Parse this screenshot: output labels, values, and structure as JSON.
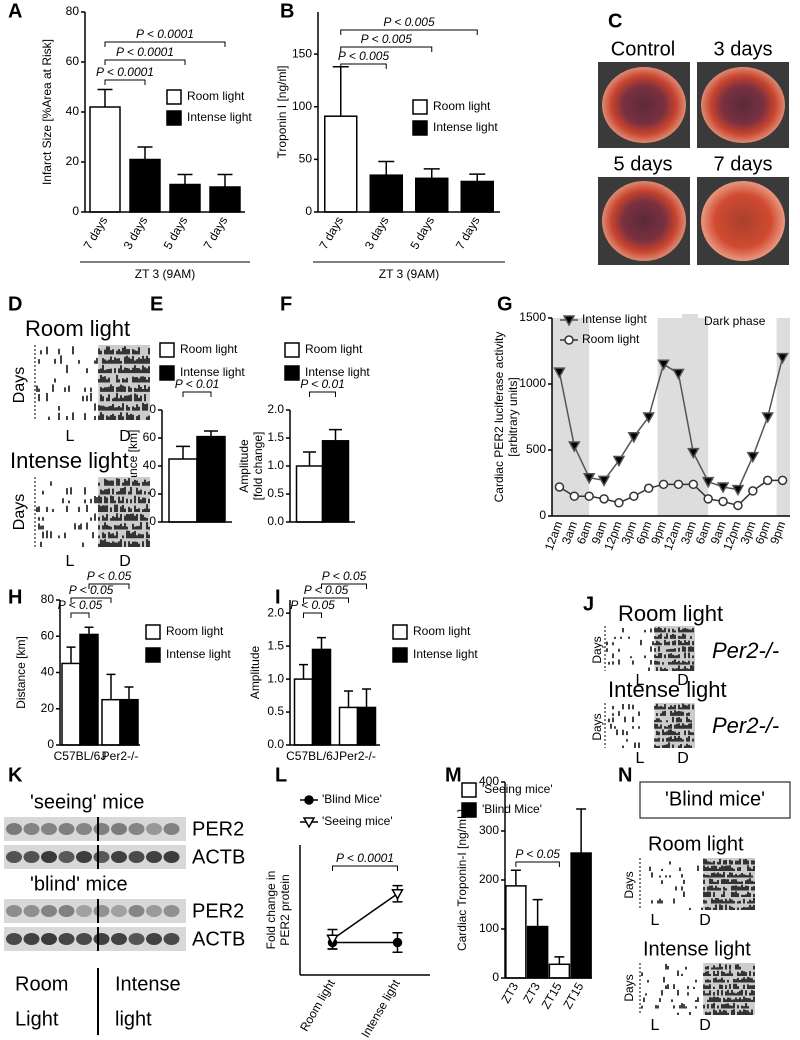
{
  "chart_data": [
    {
      "label": "A",
      "type": "bar",
      "ylabel": [
        "Infarct Size [%Area at Risk]"
      ],
      "categories": [
        "7 days",
        "3 days",
        "5 days",
        "7 days"
      ],
      "xlabel": "ZT 3 (9AM)",
      "series": [
        {
          "name": "Room light",
          "color": "#ffffff",
          "values": [
            42,
            null,
            null,
            null
          ],
          "errors": [
            7,
            null,
            null,
            null
          ]
        },
        {
          "name": "Intense light",
          "color": "#000000",
          "values": [
            null,
            21,
            11,
            10
          ],
          "errors": [
            null,
            5,
            4,
            5
          ]
        }
      ],
      "ylim": [
        0,
        80
      ],
      "yticks": [
        0,
        20,
        40,
        60,
        80
      ],
      "annotations": [
        "P < 0.0001",
        "P < 0.0001",
        "P < 0.0001"
      ]
    },
    {
      "label": "B",
      "type": "bar",
      "ylabel": [
        "Troponin I [ng/ml]"
      ],
      "categories": [
        "7 days",
        "3 days",
        "5 days",
        "7 days"
      ],
      "xlabel": "ZT 3 (9AM)",
      "series": [
        {
          "name": "Room light",
          "color": "#ffffff",
          "values": [
            91,
            null,
            null,
            null
          ],
          "errors": [
            47,
            null,
            null,
            null
          ]
        },
        {
          "name": "Intense light",
          "color": "#000000",
          "values": [
            null,
            35,
            32,
            29
          ],
          "errors": [
            null,
            13,
            9,
            7
          ]
        }
      ],
      "ylim": [
        0,
        190
      ],
      "yticks": [
        0,
        50,
        100,
        150
      ],
      "annotations": [
        "P < 0.005",
        "P < 0.005",
        "P < 0.005"
      ]
    },
    {
      "label": "E",
      "type": "bar",
      "ylabel": [
        "Distance [km]"
      ],
      "categories": [
        null
      ],
      "series": [
        {
          "name": "Room light",
          "color": "#ffffff",
          "values": [
            45
          ],
          "errors": [
            9
          ]
        },
        {
          "name": "Intense light",
          "color": "#000000",
          "values": [
            61
          ],
          "errors": [
            4
          ]
        }
      ],
      "ylim": [
        0,
        80
      ],
      "yticks": [
        0,
        20,
        40,
        60,
        80
      ],
      "annotations": [
        "P < 0.01"
      ]
    },
    {
      "label": "F",
      "type": "bar",
      "ylabel": [
        "Amplitude",
        "[fold change]"
      ],
      "categories": [
        null
      ],
      "series": [
        {
          "name": "Room light",
          "color": "#ffffff",
          "values": [
            1.0
          ],
          "errors": [
            0.25
          ]
        },
        {
          "name": "Intense light",
          "color": "#000000",
          "values": [
            1.45
          ],
          "errors": [
            0.2
          ]
        }
      ],
      "ylim": [
        0,
        2
      ],
      "yticks": [
        {
          "value": 0,
          "label": "0.0"
        },
        {
          "value": 0.5,
          "label": "0.5"
        },
        {
          "value": 1,
          "label": "1.0"
        },
        {
          "value": 1.5,
          "label": "1.5"
        },
        {
          "value": 2,
          "label": "2.0"
        }
      ],
      "annotations": [
        "P < 0.01"
      ]
    },
    {
      "label": "G",
      "type": "line",
      "ylabel": [
        "Cardiac PER2 luciferase activity",
        "[arbitrary units]"
      ],
      "categories": [
        "12am",
        "3am",
        "6am",
        "9am",
        "12pm",
        "3pm",
        "6pm",
        "9pm",
        "12am",
        "3am",
        "6am",
        "9am",
        "12pm",
        "3pm",
        "6pm",
        "9pm"
      ],
      "series": [
        {
          "name": "Intense light",
          "color": "#555555",
          "marker": "triangle-down",
          "marker_fill": "#000000",
          "values": [
            1090,
            530,
            290,
            270,
            420,
            600,
            750,
            1150,
            1080,
            480,
            260,
            220,
            200,
            450,
            750,
            1200
          ]
        },
        {
          "name": "Room light",
          "color": "#333333",
          "marker": "circle",
          "marker_fill": "#ffffff",
          "values": [
            220,
            150,
            150,
            130,
            100,
            150,
            210,
            240,
            240,
            240,
            130,
            110,
            80,
            190,
            270,
            270
          ]
        }
      ],
      "shade_label": "Dark phase",
      "shade_color": "#dddddd",
      "ylim": [
        0,
        1500
      ],
      "yticks": [
        0,
        500,
        1000,
        1500
      ]
    },
    {
      "label": "H",
      "type": "bar",
      "ylabel": [
        "Distance [km]"
      ],
      "categories": [
        "C57BL/6J",
        "Per2-/-"
      ],
      "series": [
        {
          "name": "Room light",
          "color": "#ffffff",
          "values": [
            45,
            25
          ],
          "errors": [
            9,
            14
          ]
        },
        {
          "name": "Intense light",
          "color": "#000000",
          "values": [
            61,
            25
          ],
          "errors": [
            4,
            7
          ]
        }
      ],
      "ylim": [
        0,
        80
      ],
      "yticks": [
        0,
        20,
        40,
        60,
        80
      ],
      "annotations": [
        "P < 0.05",
        "P < 0.05",
        "P < 0.05"
      ]
    },
    {
      "label": "I",
      "type": "bar",
      "ylabel": [
        "Amplitude"
      ],
      "categories": [
        "C57BL/6J",
        "Per2-/-"
      ],
      "series": [
        {
          "name": "Room light",
          "color": "#ffffff",
          "values": [
            1.0,
            0.57
          ],
          "errors": [
            0.22,
            0.25
          ]
        },
        {
          "name": "Intense light",
          "color": "#000000",
          "values": [
            1.45,
            0.57
          ],
          "errors": [
            0.18,
            0.28
          ]
        }
      ],
      "ylim": [
        0,
        2.2
      ],
      "yticks": [
        {
          "value": 0,
          "label": "0.0"
        },
        {
          "value": 0.5,
          "label": "0.5"
        },
        {
          "value": 1,
          "label": "1.0"
        },
        {
          "value": 1.5,
          "label": "1.5"
        },
        {
          "value": 2,
          "label": "2.0"
        }
      ],
      "annotations": [
        "P < 0.05",
        "P < 0.05",
        "P < 0.05"
      ]
    },
    {
      "label": "L",
      "type": "line",
      "ylabel": [
        "Fold change in",
        "PER2 protein"
      ],
      "categories": [
        "Room light",
        "Intense light"
      ],
      "series": [
        {
          "name": "'Blind Mice'",
          "color": "#000000",
          "marker": "circle",
          "marker_fill": "#000000",
          "values": [
            1.0,
            1.0
          ],
          "errors": [
            0.2,
            0.3
          ]
        },
        {
          "name": "'Seeing mice'",
          "color": "#000000",
          "marker": "triangle-down",
          "marker_fill": "#ffffff",
          "values": [
            1.1,
            2.5
          ],
          "errors": [
            0.3,
            0.25
          ]
        }
      ],
      "ylim": [
        0,
        4
      ],
      "annotations": [
        "P < 0.0001"
      ]
    },
    {
      "label": "M",
      "type": "bar",
      "ylabel": [
        "Cardiac Troponin-I [ng/mL]"
      ],
      "categories": [
        "ZT3",
        "ZT3",
        "ZT15",
        "ZT15"
      ],
      "series": [
        {
          "name": "'Seeing mice'",
          "color": "#ffffff",
          "values": [
            188,
            null,
            28,
            null
          ],
          "errors": [
            32,
            null,
            15,
            null
          ]
        },
        {
          "name": "'Blind Mice'",
          "color": "#000000",
          "values": [
            null,
            105,
            null,
            255
          ],
          "errors": [
            null,
            55,
            null,
            90
          ]
        }
      ],
      "ylim": [
        0,
        400
      ],
      "yticks": [
        0,
        100,
        200,
        300,
        400
      ],
      "annotations": [
        "P < 0.05"
      ]
    }
  ],
  "panels": {
    "C": {
      "label": "C",
      "images": [
        "Control",
        "3 days",
        "5 days",
        "7 days"
      ]
    },
    "D": {
      "label": "D",
      "sections": [
        {
          "title": "Room light",
          "axis": "Days",
          "x": [
            "L",
            "D"
          ]
        },
        {
          "title": "Intense light",
          "axis": "Days",
          "x": [
            "L",
            "D"
          ]
        }
      ]
    },
    "J": {
      "label": "J",
      "sections": [
        {
          "title": "Room light",
          "axis": "Days",
          "x": [
            "L",
            "D"
          ],
          "genotype": "Per2-/-"
        },
        {
          "title": "Intense light",
          "axis": "Days",
          "x": [
            "L",
            "D"
          ],
          "genotype": "Per2-/-"
        }
      ]
    },
    "K": {
      "label": "K",
      "blots": [
        {
          "title": "'seeing' mice",
          "bands": [
            "PER2",
            "ACTB"
          ]
        },
        {
          "title": "'blind' mice",
          "bands": [
            "PER2",
            "ACTB"
          ]
        }
      ],
      "groups": [
        [
          "Room",
          "Light"
        ],
        [
          "Intense",
          "light"
        ]
      ]
    },
    "N": {
      "label": "N",
      "title": "'Blind mice'",
      "sections": [
        {
          "title": "Room light",
          "axis": "Days",
          "x": [
            "L",
            "D"
          ]
        },
        {
          "title": "Intense light",
          "axis": "Days",
          "x": [
            "L",
            "D"
          ]
        }
      ]
    }
  }
}
